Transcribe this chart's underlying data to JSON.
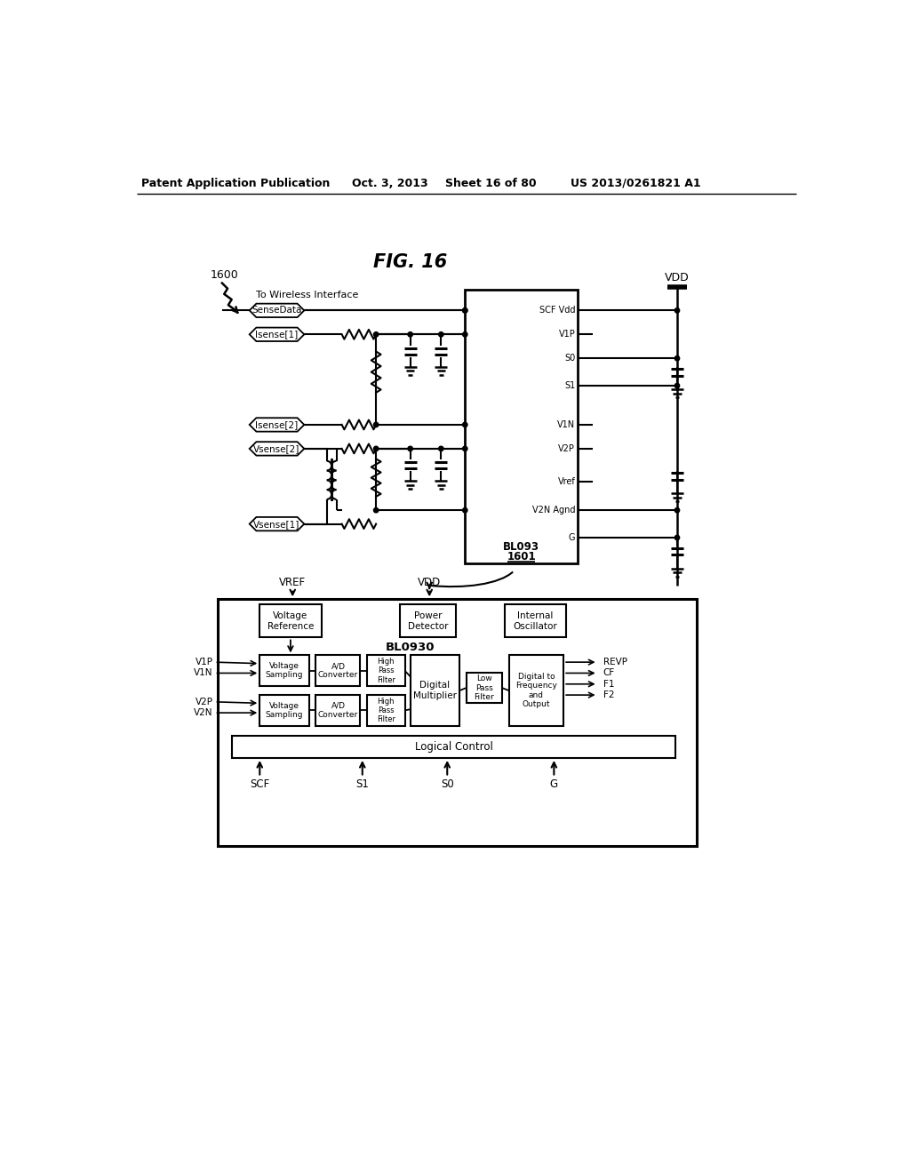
{
  "bg_color": "#ffffff",
  "header_text": "Patent Application Publication",
  "header_date": "Oct. 3, 2013",
  "header_sheet": "Sheet 16 of 80",
  "header_patent": "US 2013/0261821 A1",
  "fig_label": "FIG. 16",
  "chip2_label": "BL0930",
  "block_logical": "Logical Control"
}
